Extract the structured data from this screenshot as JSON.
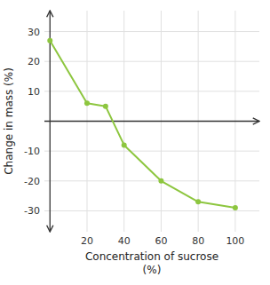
{
  "chart_data": {
    "type": "line",
    "x": [
      0,
      20,
      30,
      40,
      60,
      80,
      100
    ],
    "values": [
      27,
      6,
      5,
      -8,
      -20,
      -27,
      -29
    ],
    "color": "#8dc63f",
    "marker": "circle",
    "xlabel": "Concentration of sucrose\n(%)",
    "ylabel": "Change in mass (%)",
    "xlim": [
      -3,
      113
    ],
    "ylim": [
      -37,
      37
    ],
    "xticks": [
      20,
      40,
      60,
      80,
      100
    ],
    "yticks": [
      -30,
      -20,
      -10,
      10,
      20,
      30
    ],
    "grid": true
  }
}
